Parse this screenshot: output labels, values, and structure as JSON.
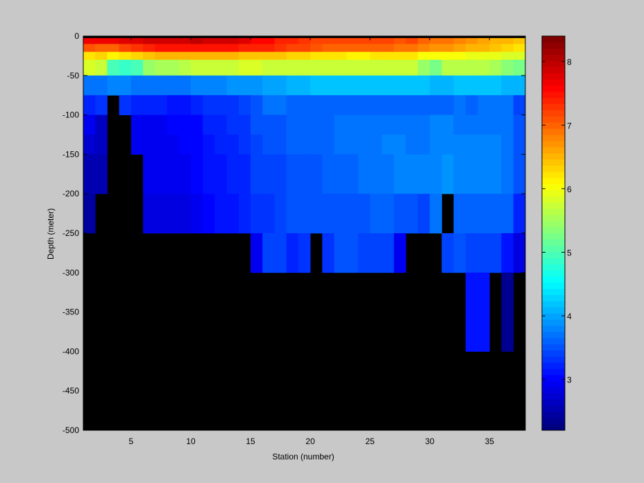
{
  "chart_data": {
    "type": "heatmap",
    "title": "",
    "xlabel": "Station (number)",
    "ylabel": "Depth (meter)",
    "xlim": [
      1,
      38
    ],
    "ylim": [
      -500,
      0
    ],
    "x_ticks": [
      5,
      10,
      15,
      20,
      25,
      30,
      35
    ],
    "y_ticks": [
      0,
      -50,
      -100,
      -150,
      -200,
      -250,
      -300,
      -350,
      -400,
      -450,
      -500
    ],
    "colorbar": {
      "colormap": "jet",
      "min": 2.2,
      "max": 8.4,
      "levels": 64,
      "ticks": [
        3,
        4,
        5,
        6,
        7,
        8
      ]
    },
    "no_data_color": "#000000",
    "rows": [
      {
        "depth": [
          -2.5,
          0
        ],
        "values": "nodata"
      },
      {
        "depth": [
          -10,
          -2.5
        ],
        "values": [
          7.65,
          7.65,
          7.7,
          7.75,
          7.75,
          7.85,
          7.85,
          7.85,
          7.85,
          7.95,
          7.9,
          7.85,
          7.9,
          7.75,
          7.6,
          7.55,
          7.4,
          7.4,
          7.3,
          7.2,
          7.2,
          7.2,
          7.15,
          7.15,
          7.15,
          7.2,
          7.1,
          7.15,
          7.0,
          6.9,
          6.9,
          6.85,
          6.7,
          6.65,
          6.55,
          6.5,
          6.45
        ]
      },
      {
        "depth": [
          -20,
          -10
        ],
        "values": [
          7.05,
          6.95,
          7.0,
          7.2,
          7.25,
          7.35,
          7.45,
          7.45,
          7.5,
          7.5,
          7.5,
          7.45,
          7.45,
          7.4,
          7.4,
          7.35,
          7.3,
          7.2,
          7.15,
          7.1,
          7.0,
          7.0,
          6.95,
          6.95,
          6.95,
          7.0,
          6.9,
          6.9,
          6.8,
          6.7,
          6.7,
          6.65,
          6.55,
          6.5,
          6.4,
          6.35,
          6.25
        ]
      },
      {
        "depth": [
          -30,
          -20
        ],
        "values": [
          6.2,
          6.3,
          6.1,
          6.25,
          6.3,
          6.4,
          6.55,
          6.5,
          6.55,
          6.5,
          6.55,
          6.5,
          6.5,
          6.45,
          6.45,
          6.4,
          6.4,
          6.35,
          6.3,
          6.25,
          6.2,
          6.2,
          6.15,
          6.15,
          6.2,
          6.25,
          6.2,
          6.2,
          6.05,
          6.0,
          6.05,
          6.0,
          5.95,
          5.9,
          5.9,
          5.85,
          5.8
        ]
      },
      {
        "depth": [
          -45,
          -30
        ],
        "values": [
          5.8,
          5.75,
          5.0,
          4.85,
          4.95,
          5.4,
          5.5,
          5.55,
          5.6,
          5.7,
          5.75,
          5.75,
          5.75,
          5.8,
          5.8,
          5.75,
          5.75,
          5.7,
          5.75,
          5.75,
          5.7,
          5.7,
          5.7,
          5.7,
          5.7,
          5.7,
          5.7,
          5.7,
          5.4,
          5.3,
          5.6,
          5.65,
          5.6,
          5.6,
          5.55,
          5.35,
          5.3
        ]
      },
      {
        "depth": [
          -50,
          -45
        ],
        "values": [
          5.8,
          5.75,
          5.0,
          4.85,
          4.95,
          5.4,
          5.5,
          5.55,
          5.6,
          5.7,
          5.75,
          5.75,
          5.75,
          5.8,
          5.8,
          5.75,
          5.75,
          5.7,
          5.75,
          5.75,
          5.7,
          5.7,
          5.7,
          5.7,
          5.7,
          5.7,
          5.7,
          5.7,
          5.4,
          5.3,
          5.6,
          5.65,
          5.6,
          5.6,
          5.55,
          5.35,
          5.3
        ]
      },
      {
        "depth": [
          -75,
          -50
        ],
        "values": [
          3.75,
          3.75,
          3.8,
          3.8,
          3.75,
          3.75,
          3.75,
          3.75,
          3.75,
          3.8,
          3.8,
          3.8,
          3.85,
          3.85,
          3.9,
          3.95,
          4.0,
          4.05,
          4.1,
          4.15,
          4.2,
          4.2,
          4.2,
          4.2,
          4.2,
          4.2,
          4.2,
          4.2,
          4.15,
          4.1,
          4.1,
          4.15,
          4.15,
          4.15,
          4.15,
          4.1,
          4.1
        ]
      },
      {
        "depth": [
          -100,
          -75
        ],
        "values": [
          3.2,
          3.3,
          "nodata",
          3.3,
          3.2,
          3.2,
          3.2,
          3.15,
          3.15,
          3.25,
          3.3,
          3.3,
          3.35,
          3.4,
          3.55,
          3.7,
          3.7,
          3.65,
          3.65,
          3.65,
          3.6,
          3.65,
          3.65,
          3.65,
          3.65,
          3.65,
          3.65,
          3.65,
          3.65,
          3.6,
          3.65,
          3.7,
          3.65,
          3.7,
          3.7,
          3.7,
          3.4
        ]
      },
      {
        "depth": [
          -125,
          -100
        ],
        "values": [
          2.9,
          2.65,
          "nodata",
          "nodata",
          2.9,
          2.95,
          2.95,
          3.0,
          3.0,
          3.05,
          3.2,
          3.25,
          3.3,
          3.35,
          3.5,
          3.55,
          3.55,
          3.6,
          3.6,
          3.6,
          3.65,
          3.7,
          3.7,
          3.75,
          3.75,
          3.75,
          3.75,
          3.75,
          3.75,
          3.8,
          3.8,
          3.75,
          3.75,
          3.75,
          3.75,
          3.7,
          3.5
        ]
      },
      {
        "depth": [
          -150,
          -125
        ],
        "values": [
          2.75,
          2.6,
          "nodata",
          "nodata",
          2.9,
          2.9,
          2.95,
          2.95,
          3.0,
          3.05,
          3.15,
          3.2,
          3.25,
          3.3,
          3.45,
          3.55,
          3.55,
          3.6,
          3.6,
          3.6,
          3.6,
          3.7,
          3.7,
          3.75,
          3.75,
          3.8,
          3.8,
          3.75,
          3.75,
          3.8,
          3.8,
          3.8,
          3.8,
          3.8,
          3.8,
          3.7,
          3.5
        ]
      },
      {
        "depth": [
          -200,
          -150
        ],
        "values": [
          2.55,
          2.5,
          "nodata",
          "nodata",
          "nodata",
          2.9,
          2.9,
          2.9,
          2.95,
          3.0,
          3.1,
          3.15,
          3.2,
          3.25,
          3.4,
          3.45,
          3.45,
          3.55,
          3.55,
          3.55,
          3.6,
          3.6,
          3.65,
          3.7,
          3.7,
          3.75,
          3.8,
          3.8,
          3.8,
          3.8,
          3.85,
          3.8,
          3.8,
          3.8,
          3.8,
          3.7,
          3.5
        ]
      },
      {
        "depth": [
          -250,
          -200
        ],
        "values": [
          2.45,
          "nodata",
          "nodata",
          "nodata",
          "nodata",
          2.85,
          2.8,
          2.8,
          2.8,
          2.9,
          3.0,
          3.1,
          3.15,
          3.2,
          3.3,
          3.35,
          3.4,
          3.5,
          3.5,
          3.5,
          3.5,
          3.55,
          3.55,
          3.55,
          3.6,
          3.6,
          3.55,
          3.5,
          3.45,
          3.7,
          "nodata",
          3.6,
          3.6,
          3.6,
          3.6,
          3.6,
          3.2
        ]
      },
      {
        "depth": [
          -300,
          -250
        ],
        "values": [
          "nodata",
          "nodata",
          "nodata",
          "nodata",
          "nodata",
          "nodata",
          "nodata",
          "nodata",
          "nodata",
          "nodata",
          "nodata",
          "nodata",
          "nodata",
          "nodata",
          2.95,
          3.45,
          3.45,
          3.2,
          3.3,
          "nodata",
          3.3,
          3.55,
          3.5,
          3.45,
          3.45,
          3.45,
          2.95,
          "nodata",
          "nodata",
          "nodata",
          3.45,
          3.5,
          3.4,
          3.4,
          3.4,
          3.15,
          2.85
        ]
      },
      {
        "depth": [
          -400,
          -300
        ],
        "values": [
          "nodata",
          "nodata",
          "nodata",
          "nodata",
          "nodata",
          "nodata",
          "nodata",
          "nodata",
          "nodata",
          "nodata",
          "nodata",
          "nodata",
          "nodata",
          "nodata",
          "nodata",
          "nodata",
          "nodata",
          "nodata",
          "nodata",
          "nodata",
          "nodata",
          "nodata",
          "nodata",
          "nodata",
          "nodata",
          "nodata",
          "nodata",
          "nodata",
          "nodata",
          "nodata",
          "nodata",
          "nodata",
          3.1,
          3.1,
          "nodata",
          2.3,
          "nodata"
        ]
      },
      {
        "depth": [
          -500,
          -400
        ],
        "values": "nodata"
      }
    ]
  }
}
